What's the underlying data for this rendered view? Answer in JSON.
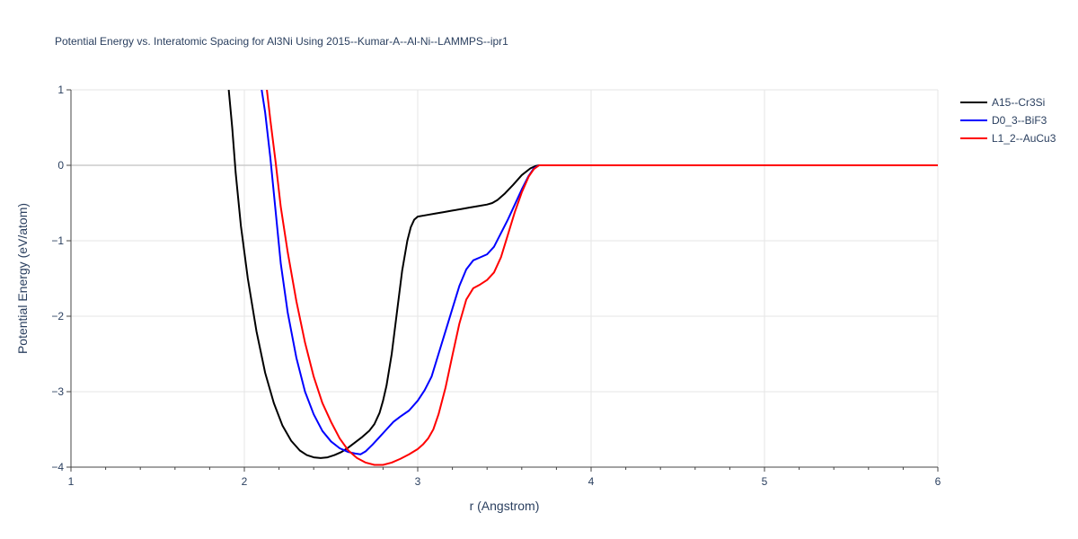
{
  "chart_data": {
    "type": "line",
    "title": "Potential Energy vs. Interatomic Spacing for Al3Ni Using 2015--Kumar-A--Al-Ni--LAMMPS--ipr1",
    "xlabel": "r (Angstrom)",
    "ylabel": "Potential Energy (eV/atom)",
    "xlim": [
      1,
      6
    ],
    "ylim": [
      -4,
      1
    ],
    "x_ticks": [
      1,
      2,
      3,
      4,
      5,
      6
    ],
    "x_tick_labels": [
      "1",
      "2",
      "3",
      "4",
      "5",
      "6"
    ],
    "y_ticks": [
      -4,
      -3,
      -2,
      -1,
      0,
      1
    ],
    "y_tick_labels": [
      "−4",
      "−3",
      "−2",
      "−1",
      "0",
      "1"
    ],
    "grid": true,
    "legend_position": "top-right",
    "series": [
      {
        "name": "A15--Cr3Si",
        "color": "#000000",
        "x": [
          1.91,
          1.93,
          1.95,
          1.98,
          2.02,
          2.07,
          2.12,
          2.17,
          2.22,
          2.27,
          2.32,
          2.36,
          2.4,
          2.44,
          2.48,
          2.52,
          2.56,
          2.6,
          2.64,
          2.68,
          2.72,
          2.75,
          2.78,
          2.8,
          2.82,
          2.85,
          2.88,
          2.91,
          2.94,
          2.96,
          2.98,
          3.0,
          3.05,
          3.1,
          3.15,
          3.2,
          3.25,
          3.3,
          3.35,
          3.4,
          3.43,
          3.46,
          3.5,
          3.55,
          3.6,
          3.65,
          3.68,
          3.7,
          4.0,
          5.0,
          6.0
        ],
        "y": [
          1.0,
          0.5,
          -0.1,
          -0.8,
          -1.5,
          -2.2,
          -2.75,
          -3.15,
          -3.45,
          -3.65,
          -3.78,
          -3.84,
          -3.87,
          -3.88,
          -3.87,
          -3.84,
          -3.8,
          -3.74,
          -3.67,
          -3.6,
          -3.52,
          -3.43,
          -3.28,
          -3.12,
          -2.92,
          -2.5,
          -1.95,
          -1.4,
          -1.0,
          -0.82,
          -0.72,
          -0.68,
          -0.66,
          -0.64,
          -0.62,
          -0.6,
          -0.58,
          -0.56,
          -0.54,
          -0.52,
          -0.5,
          -0.46,
          -0.38,
          -0.26,
          -0.13,
          -0.04,
          -0.01,
          0.0,
          0.0,
          0.0,
          0.0
        ]
      },
      {
        "name": "D0_3--BiF3",
        "color": "#0000ff",
        "x": [
          2.1,
          2.12,
          2.15,
          2.18,
          2.21,
          2.25,
          2.3,
          2.35,
          2.4,
          2.45,
          2.5,
          2.55,
          2.6,
          2.64,
          2.67,
          2.7,
          2.74,
          2.78,
          2.82,
          2.86,
          2.9,
          2.95,
          3.0,
          3.04,
          3.08,
          3.12,
          3.16,
          3.2,
          3.24,
          3.28,
          3.32,
          3.36,
          3.4,
          3.44,
          3.48,
          3.52,
          3.56,
          3.6,
          3.64,
          3.67,
          3.7,
          4.0,
          5.0,
          6.0
        ],
        "y": [
          1.0,
          0.7,
          0.1,
          -0.6,
          -1.3,
          -1.95,
          -2.55,
          -3.0,
          -3.3,
          -3.52,
          -3.66,
          -3.75,
          -3.8,
          -3.82,
          -3.83,
          -3.79,
          -3.7,
          -3.6,
          -3.5,
          -3.4,
          -3.33,
          -3.25,
          -3.12,
          -2.98,
          -2.8,
          -2.5,
          -2.2,
          -1.9,
          -1.6,
          -1.38,
          -1.26,
          -1.22,
          -1.18,
          -1.08,
          -0.9,
          -0.72,
          -0.52,
          -0.32,
          -0.14,
          -0.04,
          0.0,
          0.0,
          0.0,
          0.0
        ]
      },
      {
        "name": "L1_2--AuCu3",
        "color": "#ff0000",
        "x": [
          2.13,
          2.15,
          2.18,
          2.21,
          2.25,
          2.3,
          2.35,
          2.4,
          2.45,
          2.5,
          2.55,
          2.6,
          2.65,
          2.7,
          2.75,
          2.8,
          2.85,
          2.9,
          2.95,
          3.0,
          3.03,
          3.06,
          3.09,
          3.12,
          3.16,
          3.2,
          3.24,
          3.28,
          3.32,
          3.36,
          3.4,
          3.44,
          3.48,
          3.52,
          3.56,
          3.6,
          3.64,
          3.67,
          3.7,
          4.0,
          5.0,
          6.0
        ],
        "y": [
          1.0,
          0.6,
          0.05,
          -0.55,
          -1.15,
          -1.8,
          -2.35,
          -2.8,
          -3.15,
          -3.4,
          -3.62,
          -3.78,
          -3.88,
          -3.94,
          -3.97,
          -3.97,
          -3.94,
          -3.89,
          -3.83,
          -3.76,
          -3.7,
          -3.62,
          -3.5,
          -3.3,
          -2.95,
          -2.52,
          -2.1,
          -1.78,
          -1.63,
          -1.58,
          -1.52,
          -1.42,
          -1.22,
          -0.92,
          -0.62,
          -0.36,
          -0.15,
          -0.05,
          0.0,
          0.0,
          0.0,
          0.0
        ]
      }
    ]
  }
}
